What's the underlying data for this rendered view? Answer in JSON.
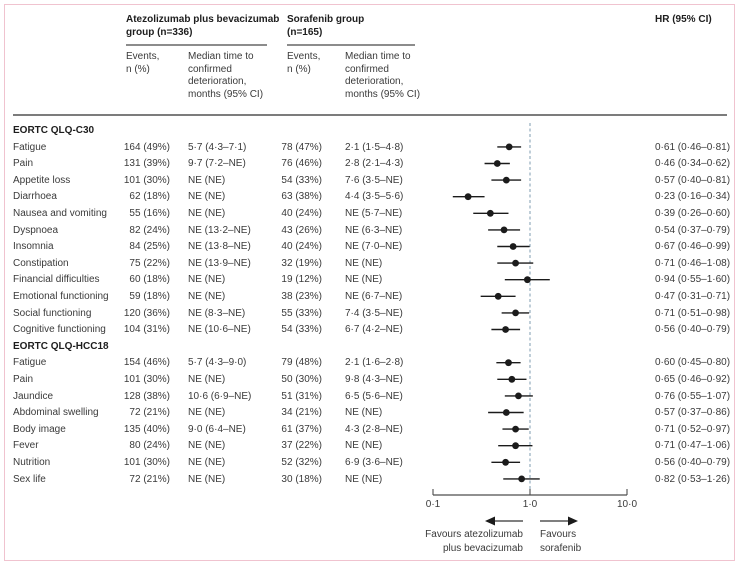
{
  "header": {
    "group1": "Atezolizumab plus bevacizumab\ngroup (n=336)",
    "group2": "Sorafenib group\n(n=165)",
    "hr": "HR (95% CI)",
    "events_sub": "Events,\nn (%)",
    "median_sub": "Median time to\nconfirmed\ndeterioration,\nmonths (95% CI)"
  },
  "footer": {
    "favours_left": "Favours atezolizumab\nplus bevacizumab",
    "favours_right": "Favours\nsorafenib"
  },
  "chart_data": {
    "type": "scatter",
    "subtype": "forest-plot",
    "xscale": "log",
    "xlim": [
      0.1,
      10.0
    ],
    "x_ticks": [
      0.1,
      1.0,
      10.0
    ],
    "x_tick_labels": [
      "0·1",
      "1·0",
      "10·0"
    ],
    "reference_line": 1.0,
    "legend_position": "none",
    "grid": false,
    "marker_color": "#1b1b1b",
    "reference_line_color": "#7f9cb2",
    "sections": [
      {
        "header": "EORTC QLQ-C30",
        "rows": [
          {
            "label": "Fatigue",
            "a_events": "164 (49%)",
            "a_median": "5·7 (4·3–7·1)",
            "s_events": "78 (47%)",
            "s_median": "2·1 (1·5–4·8)",
            "hr_label": "0·61 (0·46–0·81)",
            "hr": 0.61,
            "lo": 0.46,
            "hi": 0.81
          },
          {
            "label": "Pain",
            "a_events": "131 (39%)",
            "a_median": "9·7 (7·2–NE)",
            "s_events": "76 (46%)",
            "s_median": "2·8 (2·1–4·3)",
            "hr_label": "0·46 (0·34–0·62)",
            "hr": 0.46,
            "lo": 0.34,
            "hi": 0.62
          },
          {
            "label": "Appetite loss",
            "a_events": "101 (30%)",
            "a_median": "NE (NE)",
            "s_events": "54 (33%)",
            "s_median": "7·6 (3·5–NE)",
            "hr_label": "0·57 (0·40–0·81)",
            "hr": 0.57,
            "lo": 0.4,
            "hi": 0.81
          },
          {
            "label": "Diarrhoea",
            "a_events": "62 (18%)",
            "a_median": "NE (NE)",
            "s_events": "63 (38%)",
            "s_median": "4·4 (3·5–5·6)",
            "hr_label": "0·23 (0·16–0·34)",
            "hr": 0.23,
            "lo": 0.16,
            "hi": 0.34
          },
          {
            "label": "Nausea and vomiting",
            "a_events": "55 (16%)",
            "a_median": "NE (NE)",
            "s_events": "40 (24%)",
            "s_median": "NE (5·7–NE)",
            "hr_label": "0·39 (0·26–0·60)",
            "hr": 0.39,
            "lo": 0.26,
            "hi": 0.6
          },
          {
            "label": "Dyspnoea",
            "a_events": "82 (24%)",
            "a_median": "NE (13·2–NE)",
            "s_events": "43 (26%)",
            "s_median": "NE (6·3–NE)",
            "hr_label": "0·54 (0·37–0·79)",
            "hr": 0.54,
            "lo": 0.37,
            "hi": 0.79
          },
          {
            "label": "Insomnia",
            "a_events": "84 (25%)",
            "a_median": "NE (13·8–NE)",
            "s_events": "40 (24%)",
            "s_median": "NE (7·0–NE)",
            "hr_label": "0·67 (0·46–0·99)",
            "hr": 0.67,
            "lo": 0.46,
            "hi": 0.99
          },
          {
            "label": "Constipation",
            "a_events": "75 (22%)",
            "a_median": "NE (13·9–NE)",
            "s_events": "32 (19%)",
            "s_median": "NE (NE)",
            "hr_label": "0·71 (0·46–1·08)",
            "hr": 0.71,
            "lo": 0.46,
            "hi": 1.08
          },
          {
            "label": "Financial difficulties",
            "a_events": "60 (18%)",
            "a_median": "NE (NE)",
            "s_events": "19 (12%)",
            "s_median": "NE (NE)",
            "hr_label": "0·94 (0·55–1·60)",
            "hr": 0.94,
            "lo": 0.55,
            "hi": 1.6
          },
          {
            "label": "Emotional functioning",
            "a_events": "59 (18%)",
            "a_median": "NE (NE)",
            "s_events": "38 (23%)",
            "s_median": "NE (6·7–NE)",
            "hr_label": "0·47 (0·31–0·71)",
            "hr": 0.47,
            "lo": 0.31,
            "hi": 0.71
          },
          {
            "label": "Social functioning",
            "a_events": "120 (36%)",
            "a_median": "NE (8·3–NE)",
            "s_events": "55 (33%)",
            "s_median": "7·4 (3·5–NE)",
            "hr_label": "0·71 (0·51–0·98)",
            "hr": 0.71,
            "lo": 0.51,
            "hi": 0.98
          },
          {
            "label": "Cognitive functioning",
            "a_events": "104 (31%)",
            "a_median": "NE (10·6–NE)",
            "s_events": "54 (33%)",
            "s_median": "6·7 (4·2–NE)",
            "hr_label": "0·56 (0·40–0·79)",
            "hr": 0.56,
            "lo": 0.4,
            "hi": 0.79
          }
        ]
      },
      {
        "header": "EORTC QLQ-HCC18",
        "rows": [
          {
            "label": "Fatigue",
            "a_events": "154 (46%)",
            "a_median": "5·7 (4·3–9·0)",
            "s_events": "79 (48%)",
            "s_median": "2·1 (1·6–2·8)",
            "hr_label": "0·60 (0·45–0·80)",
            "hr": 0.6,
            "lo": 0.45,
            "hi": 0.8
          },
          {
            "label": "Pain",
            "a_events": "101 (30%)",
            "a_median": "NE (NE)",
            "s_events": "50 (30%)",
            "s_median": "9·8 (4·3–NE)",
            "hr_label": "0·65 (0·46–0·92)",
            "hr": 0.65,
            "lo": 0.46,
            "hi": 0.92
          },
          {
            "label": "Jaundice",
            "a_events": "128 (38%)",
            "a_median": "10·6 (6·9–NE)",
            "s_events": "51 (31%)",
            "s_median": "6·5 (5·6–NE)",
            "hr_label": "0·76 (0·55–1·07)",
            "hr": 0.76,
            "lo": 0.55,
            "hi": 1.07
          },
          {
            "label": "Abdominal swelling",
            "a_events": "72 (21%)",
            "a_median": "NE (NE)",
            "s_events": "34 (21%)",
            "s_median": "NE (NE)",
            "hr_label": "0·57 (0·37–0·86)",
            "hr": 0.57,
            "lo": 0.37,
            "hi": 0.86
          },
          {
            "label": "Body image",
            "a_events": "135 (40%)",
            "a_median": "9·0 (6·4–NE)",
            "s_events": "61 (37%)",
            "s_median": "4·3 (2·8–NE)",
            "hr_label": "0·71 (0·52–0·97)",
            "hr": 0.71,
            "lo": 0.52,
            "hi": 0.97
          },
          {
            "label": "Fever",
            "a_events": "80 (24%)",
            "a_median": "NE (NE)",
            "s_events": "37 (22%)",
            "s_median": "NE (NE)",
            "hr_label": "0·71 (0·47–1·06)",
            "hr": 0.71,
            "lo": 0.47,
            "hi": 1.06
          },
          {
            "label": "Nutrition",
            "a_events": "101 (30%)",
            "a_median": "NE (NE)",
            "s_events": "52 (32%)",
            "s_median": "6·9 (3·6–NE)",
            "hr_label": "0·56 (0·40–0·79)",
            "hr": 0.56,
            "lo": 0.4,
            "hi": 0.79
          },
          {
            "label": "Sex life",
            "a_events": "72 (21%)",
            "a_median": "NE (NE)",
            "s_events": "30 (18%)",
            "s_median": "NE (NE)",
            "hr_label": "0·82 (0·53–1·26)",
            "hr": 0.82,
            "lo": 0.53,
            "hi": 1.26
          }
        ]
      }
    ]
  }
}
